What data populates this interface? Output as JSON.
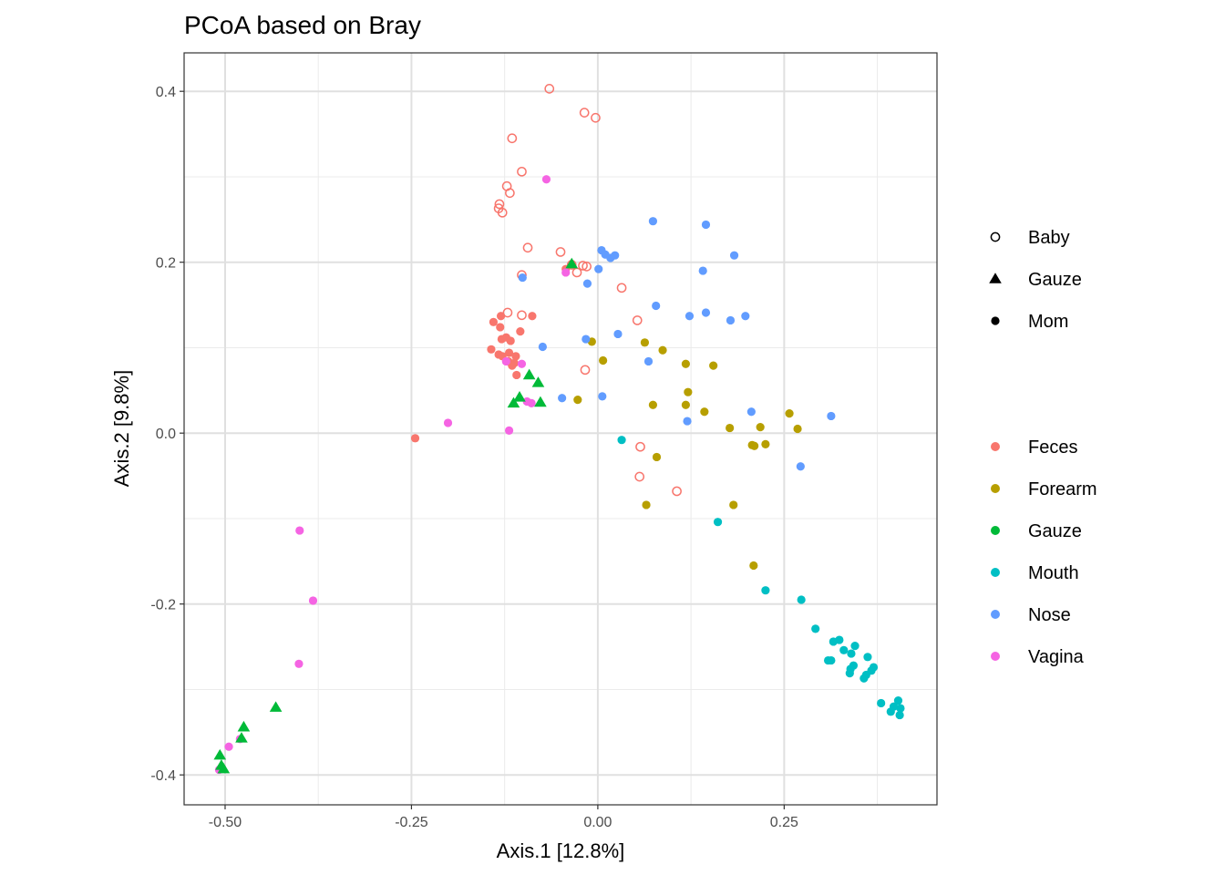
{
  "chart_data": {
    "type": "scatter",
    "title": "PCoA based on Bray",
    "xlabel": "Axis.1   [12.8%]",
    "ylabel": "Axis.2   [9.8%]",
    "xlim": [
      -0.555,
      0.455
    ],
    "ylim": [
      -0.435,
      0.445
    ],
    "x_ticks": [
      -0.5,
      -0.25,
      0.0,
      0.25
    ],
    "x_tick_labels": [
      "-0.50",
      "-0.25",
      "0.00",
      "0.25"
    ],
    "y_ticks": [
      0.4,
      0.2,
      0.0,
      -0.2,
      -0.4
    ],
    "y_tick_labels": [
      "0.4",
      "0.2",
      "0.0",
      "-0.2",
      "-0.4"
    ],
    "grid": true,
    "legend_placement": "right",
    "shape_legend": [
      {
        "label": "Baby",
        "shape": "open-circle"
      },
      {
        "label": "Gauze",
        "shape": "triangle"
      },
      {
        "label": "Mom",
        "shape": "filled-circle"
      }
    ],
    "color_legend": [
      {
        "label": "Feces",
        "color": "#F8766D"
      },
      {
        "label": "Forearm",
        "color": "#B79F00"
      },
      {
        "label": "Gauze",
        "color": "#00BA38"
      },
      {
        "label": "Mouth",
        "color": "#00BFC4"
      },
      {
        "label": "Nose",
        "color": "#619CFF"
      },
      {
        "label": "Vagina",
        "color": "#F564E3"
      }
    ],
    "series": [
      {
        "name": "Feces",
        "shape": "Baby",
        "points": [
          [
            -0.065,
            0.403
          ],
          [
            -0.018,
            0.375
          ],
          [
            -0.003,
            0.369
          ],
          [
            -0.115,
            0.345
          ],
          [
            -0.102,
            0.306
          ],
          [
            -0.122,
            0.289
          ],
          [
            -0.118,
            0.281
          ],
          [
            -0.132,
            0.268
          ],
          [
            -0.133,
            0.263
          ],
          [
            -0.128,
            0.258
          ],
          [
            -0.094,
            0.217
          ],
          [
            -0.05,
            0.212
          ],
          [
            -0.035,
            0.197
          ],
          [
            -0.02,
            0.196
          ],
          [
            -0.015,
            0.195
          ],
          [
            -0.028,
            0.188
          ],
          [
            -0.102,
            0.185
          ],
          [
            0.032,
            0.17
          ],
          [
            -0.102,
            0.138
          ],
          [
            -0.121,
            0.141
          ],
          [
            0.053,
            0.132
          ],
          [
            -0.017,
            0.074
          ],
          [
            0.057,
            -0.016
          ],
          [
            0.056,
            -0.051
          ],
          [
            0.106,
            -0.068
          ]
        ]
      },
      {
        "name": "Feces",
        "shape": "Mom",
        "points": [
          [
            -0.14,
            0.13
          ],
          [
            -0.13,
            0.137
          ],
          [
            -0.131,
            0.124
          ],
          [
            -0.088,
            0.137
          ],
          [
            -0.104,
            0.119
          ],
          [
            -0.129,
            0.11
          ],
          [
            -0.123,
            0.112
          ],
          [
            -0.117,
            0.108
          ],
          [
            -0.143,
            0.098
          ],
          [
            -0.133,
            0.092
          ],
          [
            -0.128,
            0.09
          ],
          [
            -0.119,
            0.094
          ],
          [
            -0.11,
            0.09
          ],
          [
            -0.12,
            0.084
          ],
          [
            -0.112,
            0.082
          ],
          [
            -0.115,
            0.079
          ],
          [
            -0.109,
            0.068
          ],
          [
            -0.043,
            0.192
          ],
          [
            -0.245,
            -0.006
          ]
        ]
      },
      {
        "name": "Forearm",
        "shape": "Mom",
        "points": [
          [
            -0.008,
            0.107
          ],
          [
            0.063,
            0.106
          ],
          [
            0.087,
            0.097
          ],
          [
            0.007,
            0.085
          ],
          [
            0.118,
            0.081
          ],
          [
            0.155,
            0.079
          ],
          [
            0.121,
            0.048
          ],
          [
            -0.027,
            0.039
          ],
          [
            0.074,
            0.033
          ],
          [
            0.118,
            0.033
          ],
          [
            0.143,
            0.025
          ],
          [
            0.257,
            0.023
          ],
          [
            0.177,
            0.006
          ],
          [
            0.218,
            0.007
          ],
          [
            0.268,
            0.005
          ],
          [
            0.207,
            -0.014
          ],
          [
            0.21,
            -0.015
          ],
          [
            0.225,
            -0.013
          ],
          [
            0.079,
            -0.028
          ],
          [
            0.065,
            -0.084
          ],
          [
            0.182,
            -0.084
          ],
          [
            0.209,
            -0.155
          ]
        ]
      },
      {
        "name": "Gauze",
        "shape": "Gauze",
        "points": [
          [
            -0.035,
            0.198
          ],
          [
            -0.092,
            0.068
          ],
          [
            -0.08,
            0.059
          ],
          [
            -0.105,
            0.042
          ],
          [
            -0.113,
            0.035
          ],
          [
            -0.077,
            0.036
          ],
          [
            -0.432,
            -0.321
          ],
          [
            -0.475,
            -0.344
          ],
          [
            -0.478,
            -0.357
          ],
          [
            -0.507,
            -0.377
          ],
          [
            -0.505,
            -0.389
          ],
          [
            -0.502,
            -0.393
          ]
        ]
      },
      {
        "name": "Mouth",
        "shape": "Mom",
        "points": [
          [
            0.032,
            -0.008
          ],
          [
            0.161,
            -0.104
          ],
          [
            0.225,
            -0.184
          ],
          [
            0.273,
            -0.195
          ],
          [
            0.292,
            -0.229
          ],
          [
            0.316,
            -0.244
          ],
          [
            0.324,
            -0.242
          ],
          [
            0.345,
            -0.249
          ],
          [
            0.33,
            -0.254
          ],
          [
            0.34,
            -0.258
          ],
          [
            0.362,
            -0.262
          ],
          [
            0.309,
            -0.266
          ],
          [
            0.313,
            -0.266
          ],
          [
            0.343,
            -0.272
          ],
          [
            0.339,
            -0.276
          ],
          [
            0.37,
            -0.274
          ],
          [
            0.367,
            -0.278
          ],
          [
            0.36,
            -0.283
          ],
          [
            0.338,
            -0.281
          ],
          [
            0.357,
            -0.287
          ],
          [
            0.38,
            -0.316
          ],
          [
            0.397,
            -0.32
          ],
          [
            0.403,
            -0.313
          ],
          [
            0.406,
            -0.322
          ],
          [
            0.393,
            -0.326
          ],
          [
            0.405,
            -0.33
          ]
        ]
      },
      {
        "name": "Nose",
        "shape": "Mom",
        "points": [
          [
            0.074,
            0.248
          ],
          [
            0.145,
            0.244
          ],
          [
            0.005,
            0.214
          ],
          [
            0.01,
            0.209
          ],
          [
            0.023,
            0.208
          ],
          [
            0.017,
            0.205
          ],
          [
            0.183,
            0.208
          ],
          [
            0.001,
            0.192
          ],
          [
            0.141,
            0.19
          ],
          [
            -0.101,
            0.182
          ],
          [
            -0.014,
            0.175
          ],
          [
            0.078,
            0.149
          ],
          [
            0.145,
            0.141
          ],
          [
            0.123,
            0.137
          ],
          [
            0.198,
            0.137
          ],
          [
            0.178,
            0.132
          ],
          [
            0.027,
            0.116
          ],
          [
            -0.016,
            0.11
          ],
          [
            -0.074,
            0.101
          ],
          [
            0.068,
            0.084
          ],
          [
            -0.048,
            0.041
          ],
          [
            0.006,
            0.043
          ],
          [
            0.206,
            0.025
          ],
          [
            0.12,
            0.014
          ],
          [
            0.313,
            0.02
          ],
          [
            0.272,
            -0.039
          ]
        ]
      },
      {
        "name": "Vagina",
        "shape": "Mom",
        "points": [
          [
            -0.069,
            0.297
          ],
          [
            -0.043,
            0.188
          ],
          [
            -0.102,
            0.081
          ],
          [
            -0.123,
            0.084
          ],
          [
            -0.095,
            0.037
          ],
          [
            -0.089,
            0.035
          ],
          [
            -0.201,
            0.012
          ],
          [
            -0.119,
            0.003
          ],
          [
            -0.4,
            -0.114
          ],
          [
            -0.382,
            -0.196
          ],
          [
            -0.401,
            -0.27
          ],
          [
            -0.495,
            -0.367
          ],
          [
            -0.48,
            -0.358
          ],
          [
            -0.504,
            -0.393
          ],
          [
            -0.508,
            -0.394
          ]
        ]
      }
    ]
  }
}
